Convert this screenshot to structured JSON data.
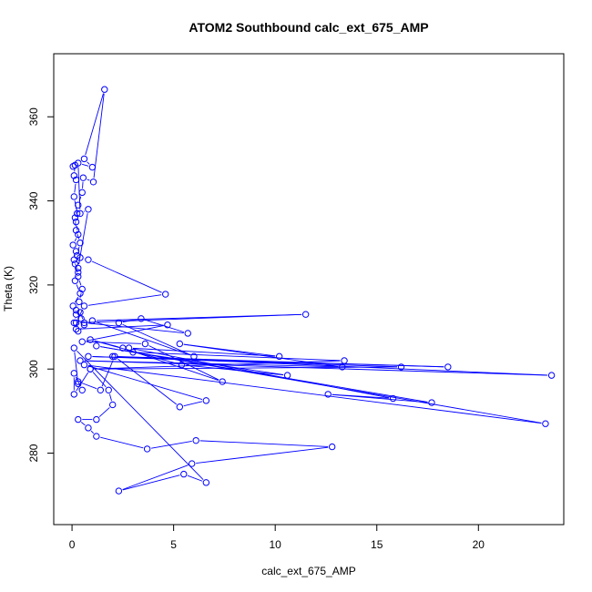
{
  "chart_data": {
    "type": "line",
    "title": "ATOM2 Southbound calc_ext_675_AMP",
    "xlabel": "calc_ext_675_AMP",
    "ylabel": "Theta (K)",
    "xlim": [
      -0.9,
      24.2
    ],
    "ylim": [
      263,
      375
    ],
    "xticks": [
      0,
      5,
      10,
      15,
      20
    ],
    "yticks": [
      280,
      300,
      320,
      340,
      360
    ],
    "grid": false,
    "legend": "none",
    "series_color": "#0000ff",
    "series": [
      {
        "markers": "circle",
        "points": [
          [
            0.05,
            348.2
          ],
          [
            0.15,
            348.5
          ],
          [
            0.1,
            346.0
          ],
          [
            0.2,
            345.0
          ],
          [
            0.1,
            341.0
          ],
          [
            0.25,
            337.0
          ],
          [
            0.2,
            335.0
          ],
          [
            0.3,
            332.0
          ],
          [
            0.05,
            329.5
          ],
          [
            0.2,
            328.0
          ],
          [
            0.1,
            326.0
          ],
          [
            0.3,
            323.0
          ],
          [
            0.15,
            321.0
          ],
          [
            0.4,
            318.0
          ],
          [
            0.05,
            315.0
          ],
          [
            0.2,
            313.0
          ],
          [
            0.1,
            311.0
          ],
          [
            0.3,
            309.0
          ],
          [
            0.6,
            310.5
          ],
          [
            0.45,
            312.0
          ],
          [
            0.2,
            314.0
          ],
          [
            0.35,
            316.0
          ],
          [
            0.5,
            319.0
          ],
          [
            0.3,
            322.0
          ],
          [
            0.15,
            325.0
          ],
          [
            0.25,
            327.0
          ],
          [
            0.4,
            330.0
          ],
          [
            0.2,
            333.0
          ],
          [
            0.15,
            336.0
          ],
          [
            0.3,
            339.0
          ],
          [
            0.5,
            342.0
          ],
          [
            0.55,
            345.5
          ],
          [
            1.05,
            344.5
          ],
          [
            1.6,
            366.5
          ],
          [
            0.6,
            350.0
          ],
          [
            1.0,
            348.0
          ],
          [
            0.3,
            349.0
          ],
          [
            0.4,
            337.0
          ],
          [
            0.8,
            338.0
          ],
          [
            0.3,
            324.0
          ],
          [
            0.4,
            326.5
          ],
          [
            0.8,
            326.0
          ],
          [
            4.6,
            317.8
          ],
          [
            0.6,
            315.0
          ],
          [
            0.2,
            311.0
          ],
          [
            11.5,
            313.0
          ],
          [
            1.0,
            311.5
          ],
          [
            6.0,
            303.0
          ],
          [
            2.3,
            311.0
          ],
          [
            3.4,
            312.0
          ],
          [
            5.7,
            308.5
          ],
          [
            0.6,
            311.0
          ],
          [
            0.4,
            313.5
          ],
          [
            0.2,
            309.5
          ],
          [
            4.7,
            310.5
          ],
          [
            0.5,
            306.5
          ],
          [
            3.6,
            306.0
          ],
          [
            7.4,
            297.0
          ],
          [
            2.5,
            305.0
          ],
          [
            0.9,
            307.0
          ],
          [
            5.4,
            301.0
          ],
          [
            10.6,
            298.5
          ],
          [
            3.0,
            304.0
          ],
          [
            13.4,
            302.0
          ],
          [
            0.9,
            300.0
          ],
          [
            16.2,
            300.5
          ],
          [
            0.8,
            303.0
          ],
          [
            18.5,
            300.5
          ],
          [
            2.0,
            303.0
          ],
          [
            23.6,
            298.5
          ],
          [
            0.4,
            302.0
          ],
          [
            13.3,
            300.5
          ],
          [
            5.3,
            306.0
          ],
          [
            10.2,
            303.0
          ],
          [
            2.8,
            305.0
          ],
          [
            15.8,
            293.0
          ],
          [
            12.6,
            294.0
          ],
          [
            17.7,
            292.0
          ],
          [
            1.2,
            305.5
          ],
          [
            23.3,
            287.0
          ],
          [
            0.6,
            301.0
          ],
          [
            6.6,
            292.5
          ],
          [
            5.3,
            291.0
          ],
          [
            2.1,
            303.0
          ],
          [
            1.4,
            295.0
          ],
          [
            0.3,
            297.0
          ],
          [
            0.5,
            295.0
          ],
          [
            0.1,
            299.0
          ],
          [
            0.1,
            294.0
          ],
          [
            0.9,
            300.0
          ],
          [
            1.8,
            295.0
          ],
          [
            2.0,
            291.5
          ],
          [
            1.2,
            288.0
          ],
          [
            0.3,
            288.0
          ],
          [
            0.8,
            286.0
          ],
          [
            1.2,
            284.0
          ],
          [
            3.7,
            281.0
          ],
          [
            6.1,
            283.0
          ],
          [
            12.8,
            281.5
          ],
          [
            5.9,
            277.5
          ],
          [
            2.3,
            271.0
          ],
          [
            5.5,
            275.0
          ],
          [
            6.6,
            273.0
          ],
          [
            0.1,
            305.0
          ],
          [
            0.3,
            296.5
          ]
        ]
      }
    ]
  }
}
